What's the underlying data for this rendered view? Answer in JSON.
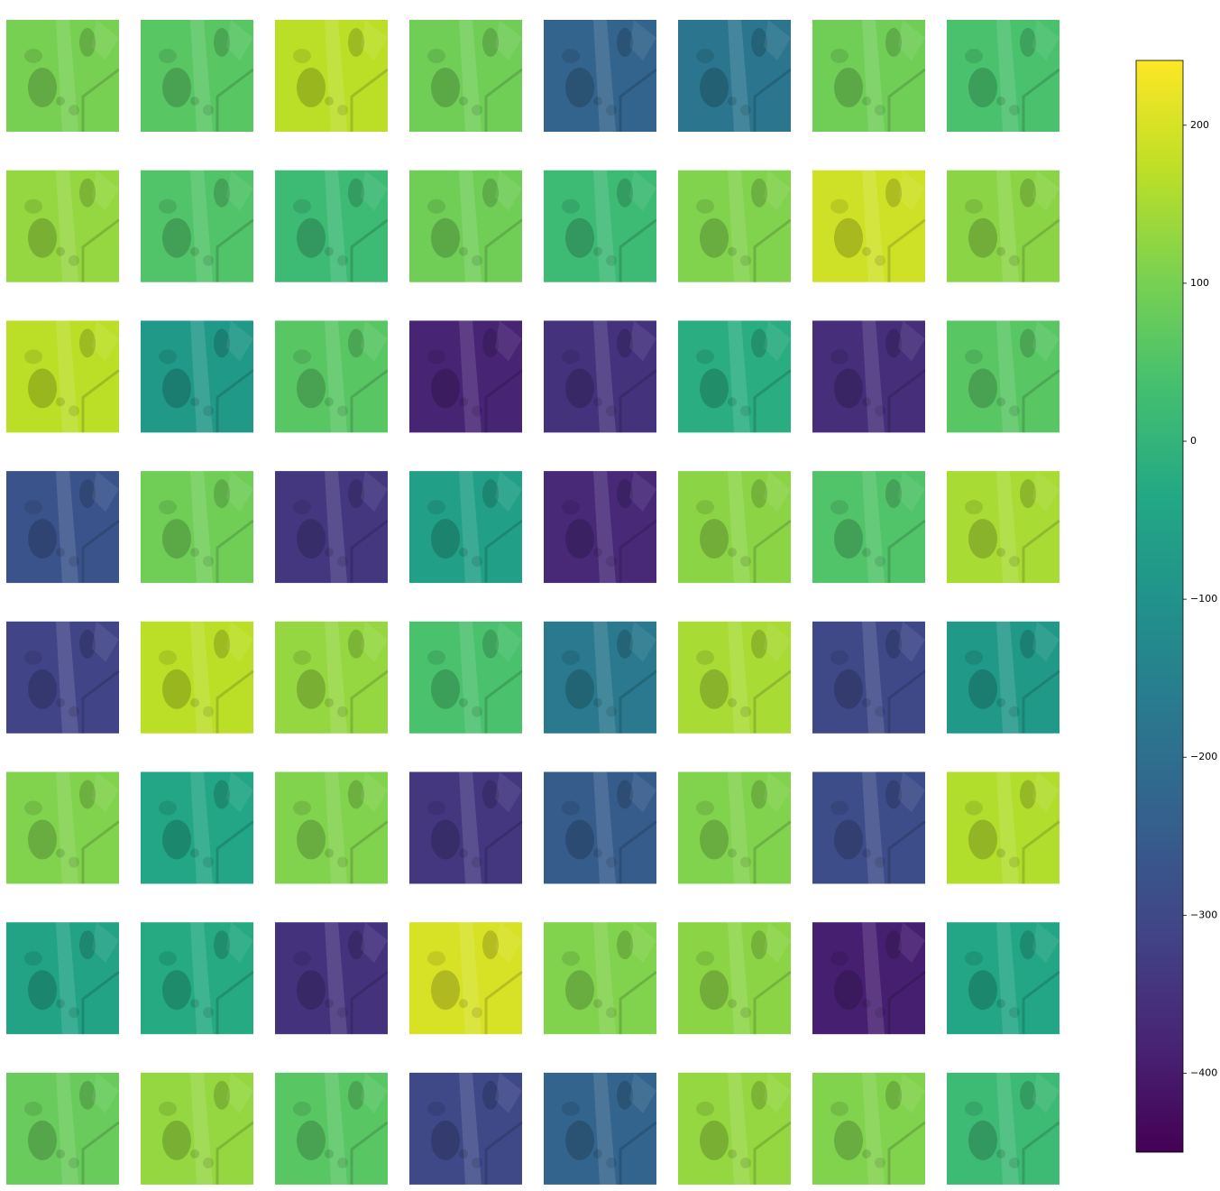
{
  "chart_data": {
    "type": "heatmap",
    "colormap": "viridis",
    "values": [
      [
        100,
        60,
        170,
        90,
        -230,
        -180,
        90,
        40
      ],
      [
        130,
        50,
        20,
        90,
        20,
        110,
        190,
        120
      ],
      [
        170,
        -80,
        60,
        -380,
        -350,
        -20,
        -360,
        60
      ],
      [
        -270,
        90,
        -340,
        -60,
        -370,
        120,
        50,
        150
      ],
      [
        -310,
        170,
        130,
        40,
        -170,
        150,
        -300,
        -80
      ],
      [
        110,
        -40,
        110,
        -340,
        -250,
        110,
        -290,
        160
      ],
      [
        -50,
        -30,
        -350,
        200,
        110,
        120,
        -390,
        -40
      ],
      [
        80,
        130,
        60,
        -300,
        -230,
        130,
        110,
        20
      ]
    ],
    "ylim": [
      -450,
      241
    ],
    "yticks": [
      {
        "value": -400,
        "label": "−400"
      },
      {
        "value": -300,
        "label": "−300"
      },
      {
        "value": -200,
        "label": "−200"
      },
      {
        "value": -100,
        "label": "−100"
      },
      0,
      100,
      200
    ]
  }
}
